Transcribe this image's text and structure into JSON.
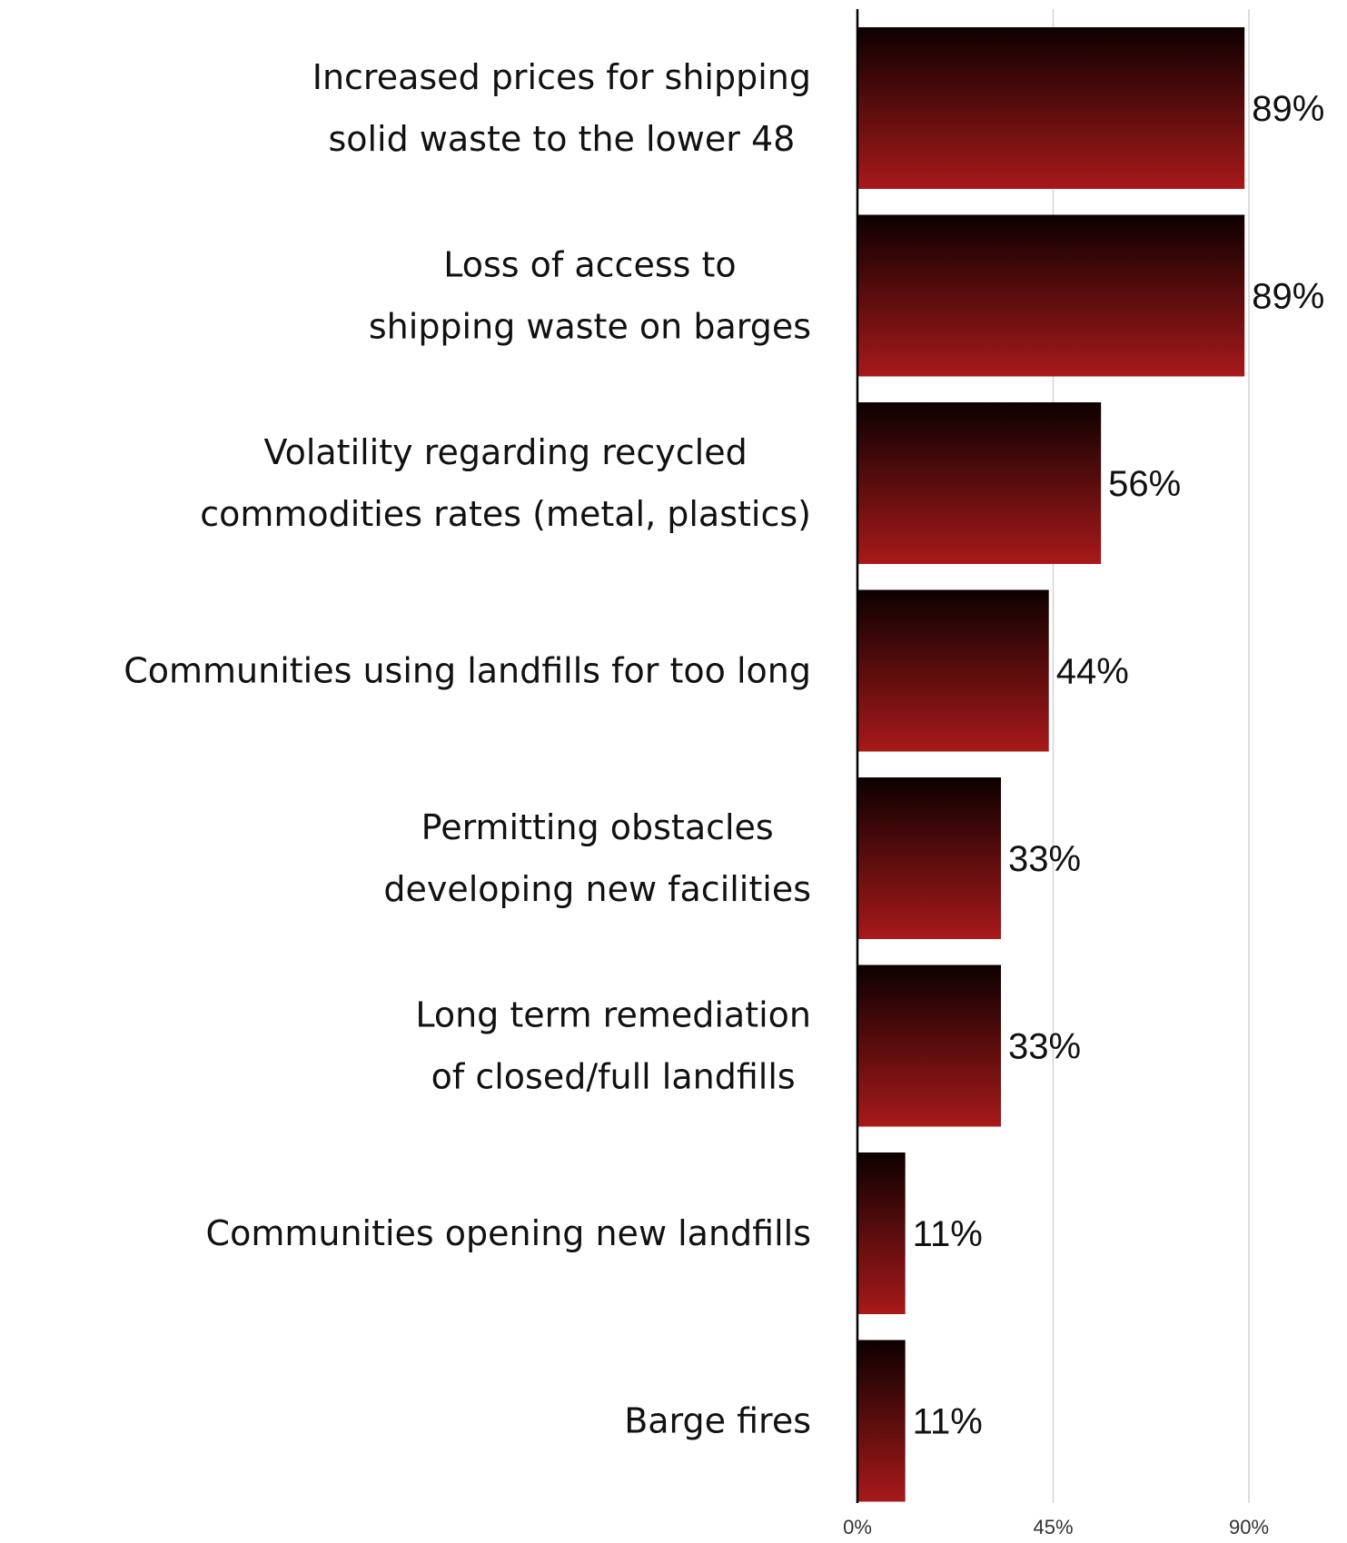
{
  "chart_data": {
    "type": "bar",
    "orientation": "horizontal",
    "title": "",
    "xlabel": "",
    "ylabel": "",
    "xlim": [
      0,
      90
    ],
    "ticks": [
      0,
      45,
      90
    ],
    "tick_labels": [
      "0%",
      "45%",
      "90%"
    ],
    "grid": true,
    "categories": [
      [
        "Increased prices for shipping",
        "solid waste to the lower 48"
      ],
      [
        "Loss of access to",
        "shipping waste on barges"
      ],
      [
        "Volatility regarding recycled",
        "commodities rates (metal, plastics)"
      ],
      [
        "Communities using landfills for too long"
      ],
      [
        "Permitting obstacles",
        "developing new facilities"
      ],
      [
        "Long term remediation",
        "of closed/full landfills"
      ],
      [
        "Communities opening new landfills"
      ],
      [
        "Barge fires"
      ]
    ],
    "values": [
      89,
      89,
      56,
      44,
      33,
      33,
      11,
      11
    ],
    "value_labels": [
      "89%",
      "89%",
      "56%",
      "44%",
      "33%",
      "33%",
      "11%",
      "11%"
    ],
    "colors": {
      "bar_top": "#0d0000",
      "bar_bottom": "#a8191a"
    }
  }
}
